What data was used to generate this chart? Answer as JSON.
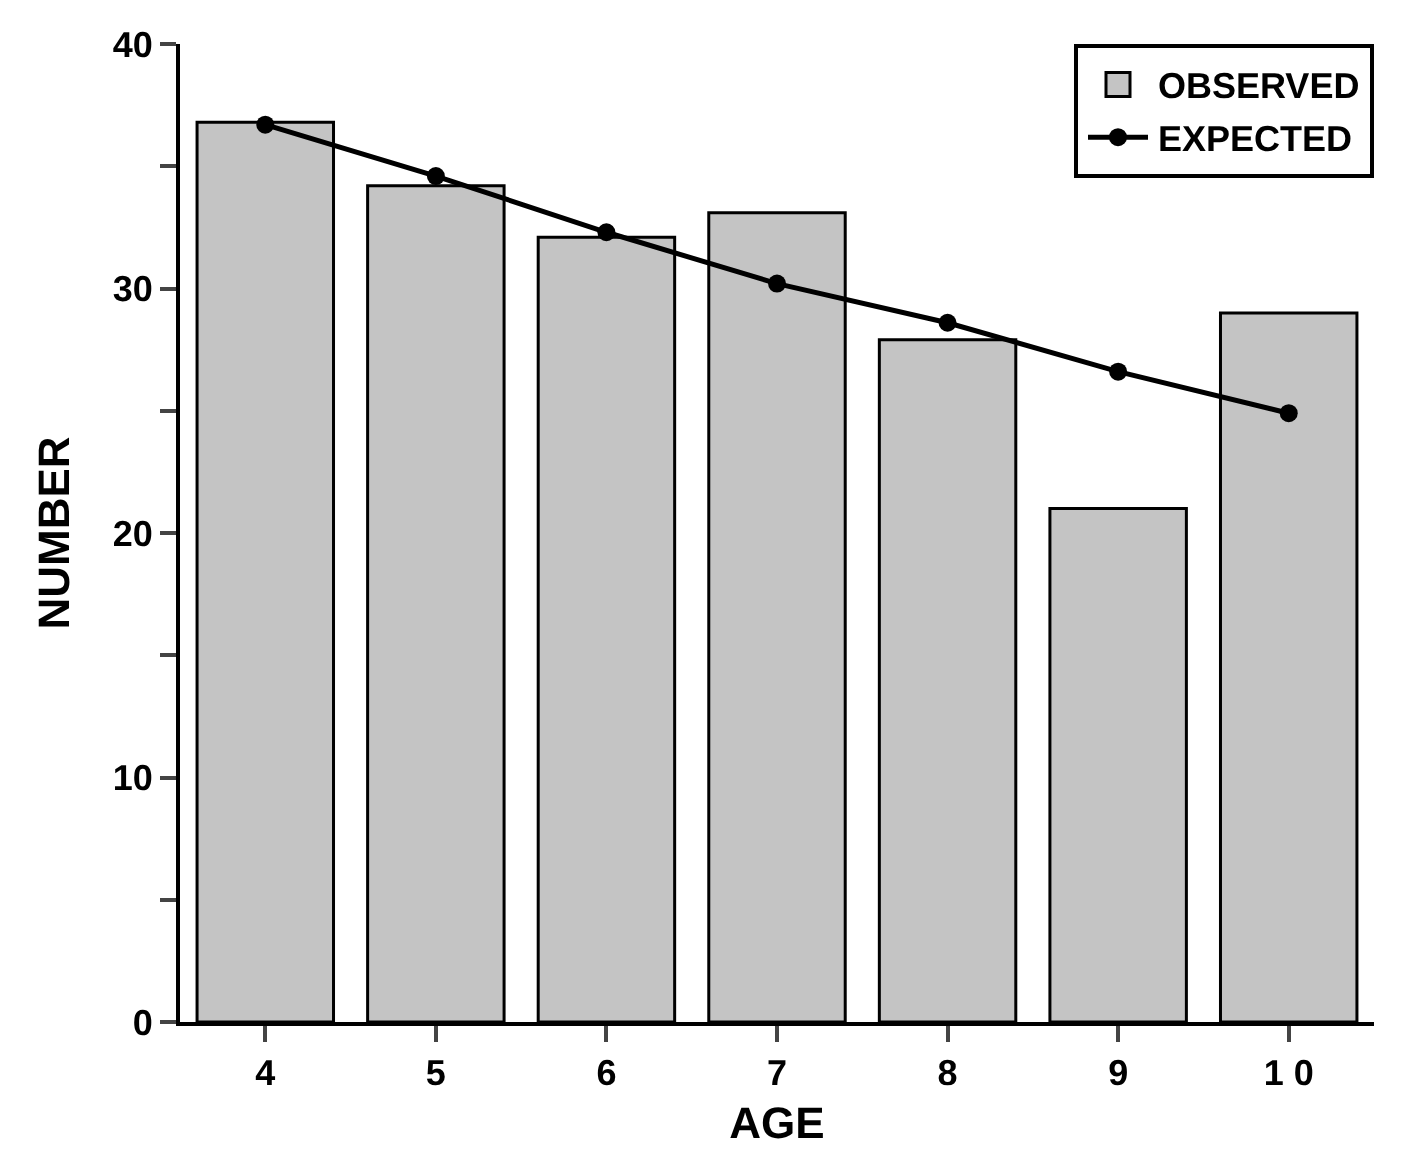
{
  "chart_data": {
    "type": "bar",
    "xlabel": "AGE",
    "ylabel": "NUMBER",
    "categories": [
      "4",
      "5",
      "6",
      "7",
      "8",
      "9",
      "1 0"
    ],
    "series": [
      {
        "name": "OBSERVED",
        "color": "#c4c4c4",
        "values": [
          36.8,
          34.2,
          32.1,
          33.1,
          27.9,
          21.0,
          29.0
        ]
      },
      {
        "name": "EXPECTED",
        "type": "line",
        "color": "#000000",
        "marker": "circle",
        "values": [
          36.7,
          34.6,
          32.3,
          30.2,
          28.6,
          26.6,
          24.9
        ]
      }
    ],
    "ylim": [
      0,
      40
    ],
    "yticks": [
      0,
      {
        "value": 5,
        "label": null
      },
      10,
      {
        "value": 15,
        "label": null
      },
      20,
      {
        "value": 25,
        "label": null
      },
      30,
      {
        "value": 35,
        "label": null
      },
      40
    ],
    "legend": "top right"
  }
}
